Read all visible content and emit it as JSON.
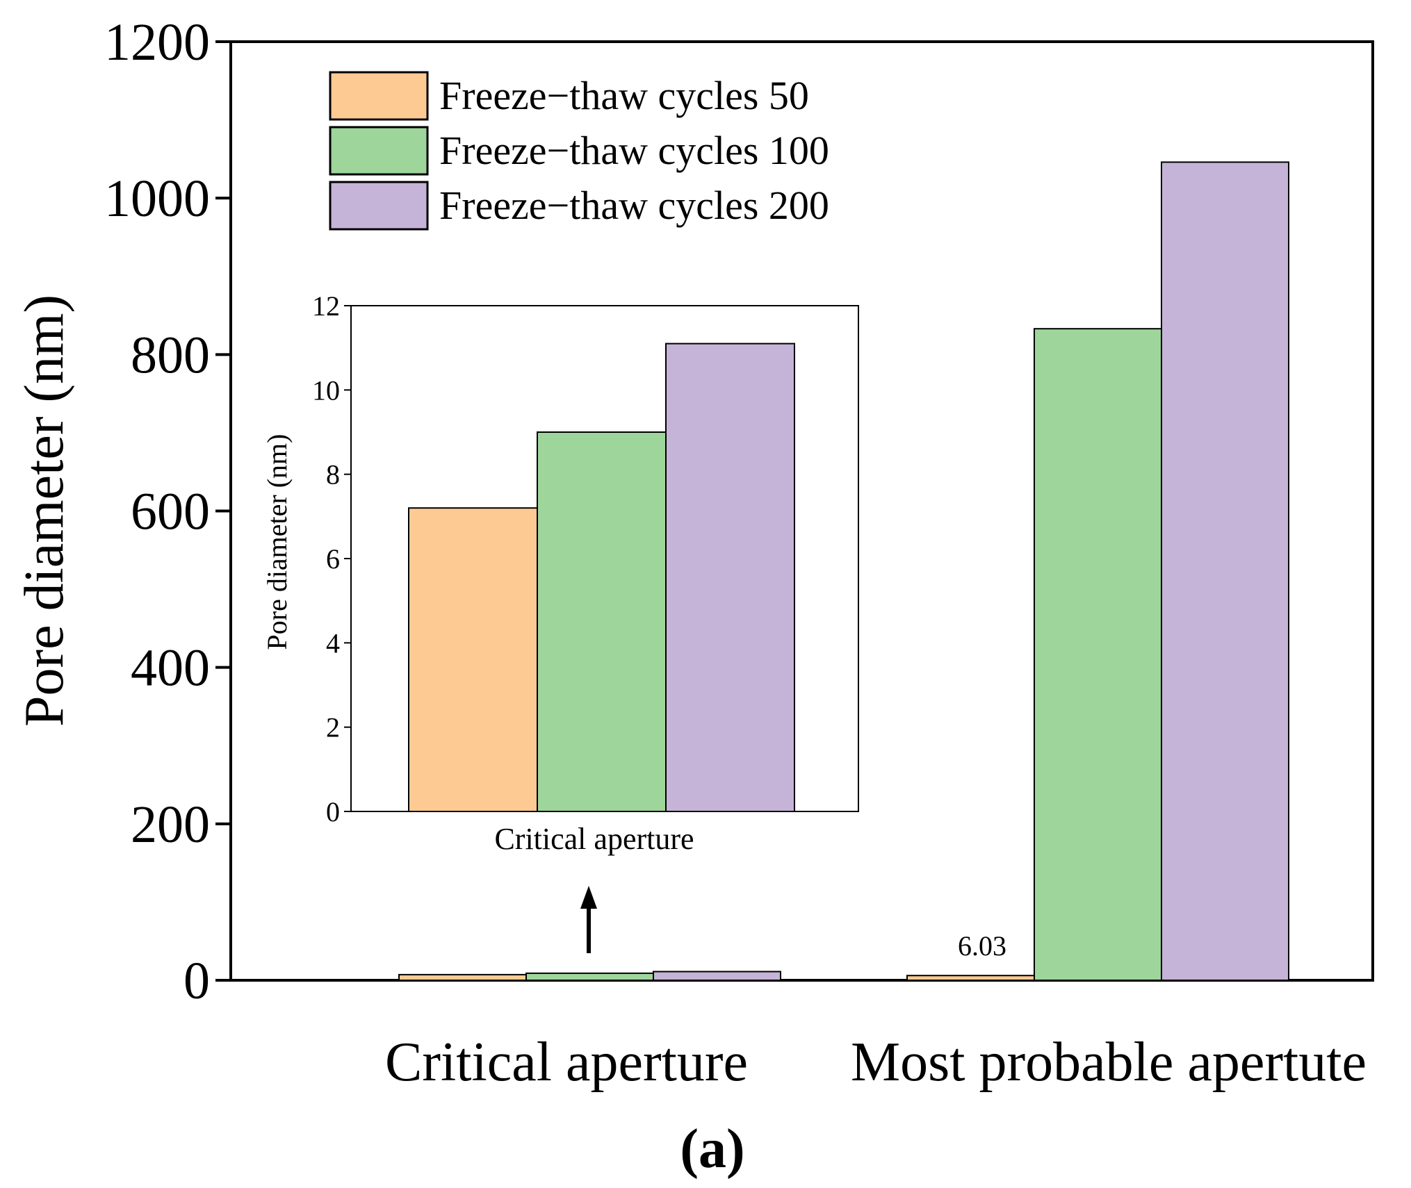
{
  "colors": {
    "series_50": "#fdca93",
    "series_100": "#9ed59b",
    "series_200": "#c5b4d7",
    "axis": "#000000"
  },
  "chart_data": [
    {
      "type": "bar",
      "title": "",
      "xlabel": "",
      "ylabel": "Pore diameter (nm)",
      "ylim": [
        0,
        1200
      ],
      "yticks": [
        "0",
        "200",
        "400",
        "600",
        "800",
        "1000",
        "1200"
      ],
      "categories": [
        "Critical aperture",
        "Most probable apertute"
      ],
      "series": [
        {
          "name": "Freeze−thaw cycles 50",
          "values": [
            7.2,
            6.03
          ]
        },
        {
          "name": "Freeze−thaw cycles 100",
          "values": [
            9.0,
            833
          ]
        },
        {
          "name": "Freeze−thaw cycles 200",
          "values": [
            11.1,
            1046
          ]
        }
      ],
      "data_labels": [
        "6.03"
      ],
      "legend_position": "top-left",
      "panel_label": "(a)"
    },
    {
      "type": "bar",
      "title": "inset",
      "xlabel": "Critical aperture",
      "ylabel": "Pore diameter (nm)",
      "ylim": [
        0,
        12
      ],
      "yticks": [
        "0",
        "2",
        "4",
        "6",
        "8",
        "10",
        "12"
      ],
      "categories": [
        "Critical aperture"
      ],
      "series": [
        {
          "name": "Freeze−thaw cycles 50",
          "values": [
            7.2
          ]
        },
        {
          "name": "Freeze−thaw cycles 100",
          "values": [
            9.0
          ]
        },
        {
          "name": "Freeze−thaw cycles 200",
          "values": [
            11.1
          ]
        }
      ]
    }
  ]
}
